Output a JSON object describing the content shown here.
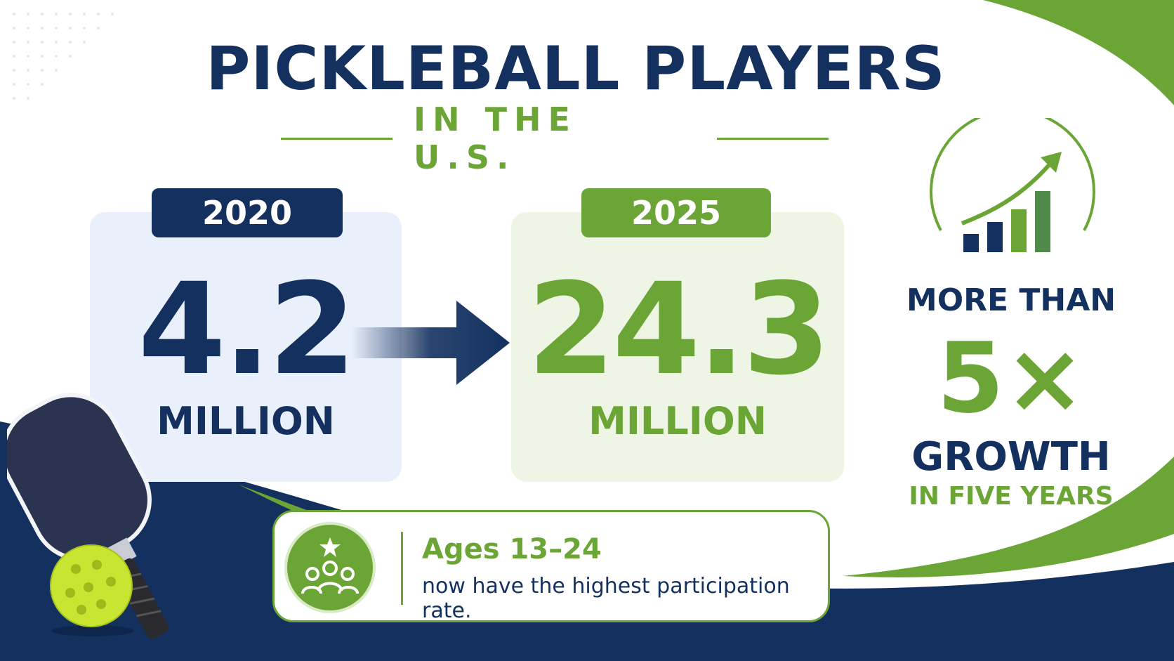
{
  "header": {
    "title": "PICKLEBALL PLAYERS",
    "subtitle": "IN THE U.S."
  },
  "comparison": {
    "before": {
      "year": "2020",
      "value": "4.2",
      "unit": "MILLION"
    },
    "after": {
      "year": "2025",
      "value": "24.3",
      "unit": "MILLION"
    }
  },
  "growth": {
    "line1": "MORE THAN",
    "multiplier": "5×",
    "line2": "GROWTH",
    "line3": "IN FIVE YEARS",
    "icon": "growth-chart-icon"
  },
  "callout": {
    "icon": "group-star-icon",
    "title": "Ages 13–24",
    "body": "now have the highest participation rate."
  },
  "decorations": {
    "paddle": "pickleball-paddle-icon",
    "ball": "pickleball-icon"
  },
  "colors": {
    "navy": "#13305f",
    "green": "#6aa535",
    "light_blue_panel": "#e9f0fb",
    "light_green_panel": "#eef5e4"
  }
}
